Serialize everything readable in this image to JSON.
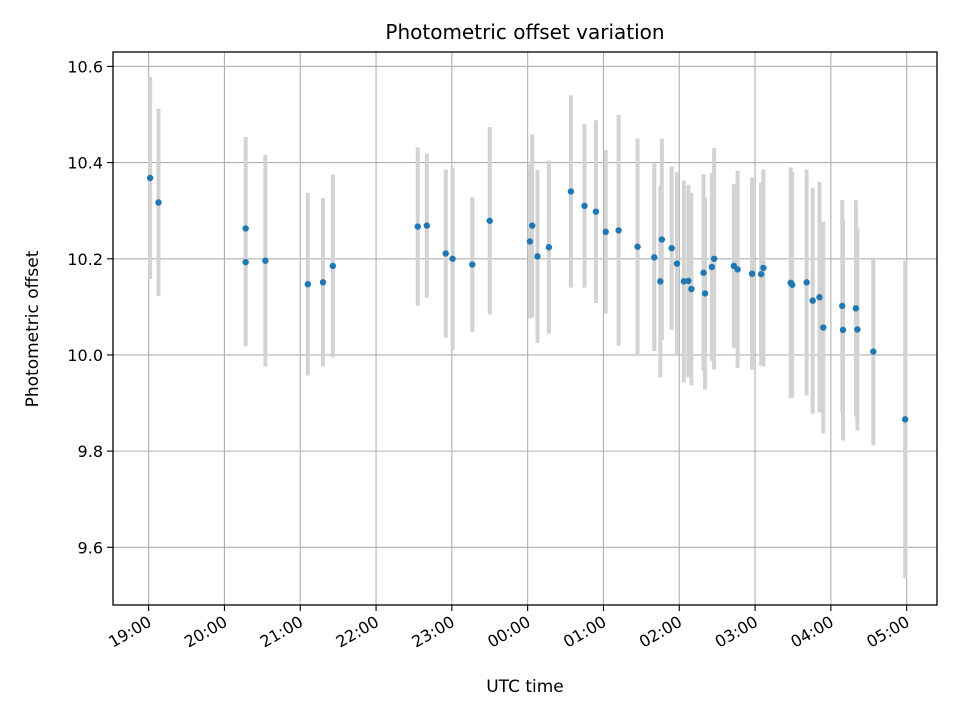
{
  "chart_data": {
    "type": "scatter",
    "title": "Photometric offset variation",
    "xlabel": "UTC time",
    "ylabel": "Photometric offset",
    "grid": true,
    "legend": "none",
    "x_unit": "hours since 19:00 UTC",
    "xlim": [
      -0.47,
      10.4
    ],
    "ylim": [
      9.48,
      10.63
    ],
    "x_ticks": [
      0,
      1,
      2,
      3,
      4,
      5,
      6,
      7,
      8,
      9,
      10
    ],
    "x_tick_labels": [
      "19:00",
      "20:00",
      "21:00",
      "22:00",
      "23:00",
      "00:00",
      "01:00",
      "02:00",
      "03:00",
      "04:00",
      "05:00"
    ],
    "y_ticks": [
      9.6,
      9.8,
      10.0,
      10.2,
      10.4,
      10.6
    ],
    "y_tick_labels": [
      "9.6",
      "9.8",
      "10.0",
      "10.2",
      "10.4",
      "10.6"
    ],
    "colors": {
      "point": "#1f77b4",
      "errorbar": "#d3d3d3",
      "grid": "#b0b0b0"
    },
    "series": [
      {
        "x": [
          0.02,
          0.13,
          1.28,
          1.28,
          1.54,
          2.1,
          2.3,
          2.43,
          3.55,
          3.67,
          3.92,
          4.01,
          4.27,
          4.5,
          5.03,
          5.06,
          5.13,
          5.28,
          5.57,
          5.75,
          5.9,
          6.03,
          6.2,
          6.45,
          6.67,
          6.75,
          6.77,
          6.9,
          6.97,
          7.06,
          7.12,
          7.16,
          7.32,
          7.34,
          7.43,
          7.46,
          7.72,
          7.77,
          7.96,
          8.08,
          8.11,
          8.47,
          8.49,
          8.68,
          8.76,
          8.85,
          8.9,
          9.15,
          9.16,
          9.33,
          9.35,
          9.56,
          9.98
        ],
        "y": [
          10.368,
          10.317,
          10.263,
          10.193,
          10.196,
          10.147,
          10.151,
          10.185,
          10.267,
          10.269,
          10.211,
          10.2,
          10.188,
          10.279,
          10.236,
          10.269,
          10.205,
          10.224,
          10.34,
          10.31,
          10.298,
          10.256,
          10.259,
          10.225,
          10.203,
          10.153,
          10.24,
          10.222,
          10.19,
          10.153,
          10.154,
          10.137,
          10.171,
          10.128,
          10.183,
          10.2,
          10.185,
          10.178,
          10.169,
          10.168,
          10.181,
          10.15,
          10.146,
          10.151,
          10.113,
          10.12,
          10.057,
          10.102,
          10.052,
          10.097,
          10.053,
          10.007,
          9.866
        ],
        "err": [
          0.21,
          0.195,
          0.19,
          0.175,
          0.22,
          0.19,
          0.175,
          0.19,
          0.165,
          0.15,
          0.175,
          0.19,
          0.14,
          0.195,
          0.16,
          0.19,
          0.18,
          0.18,
          0.2,
          0.17,
          0.19,
          0.17,
          0.24,
          0.225,
          0.195,
          0.2,
          0.21,
          0.17,
          0.19,
          0.21,
          0.2,
          0.2,
          0.205,
          0.2,
          0.195,
          0.23,
          0.17,
          0.205,
          0.2,
          0.19,
          0.205,
          0.24,
          0.235,
          0.235,
          0.235,
          0.24,
          0.22,
          0.22,
          0.23,
          0.225,
          0.21,
          0.195,
          0.33
        ]
      }
    ]
  }
}
